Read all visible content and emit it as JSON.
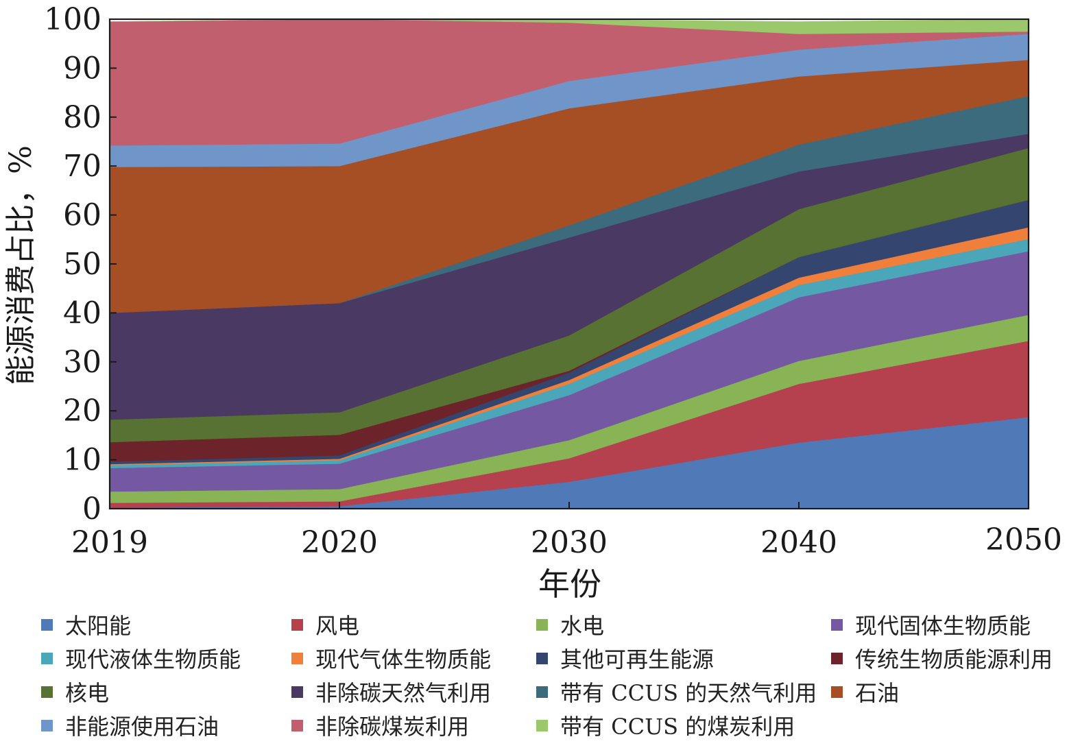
{
  "chart_data": {
    "type": "area",
    "stacked": true,
    "x": [
      "2019",
      "2020",
      "2030",
      "2040",
      "2050"
    ],
    "xlabel": "年份",
    "ylabel": "能源消费占比，%",
    "ylim": [
      0,
      100
    ],
    "yticks": [
      0,
      10,
      20,
      30,
      40,
      50,
      60,
      70,
      80,
      90,
      100
    ],
    "grid": false,
    "legend_position": "bottom",
    "series": [
      {
        "name": "太阳能",
        "color": "#4f79b7",
        "values": [
          0.2,
          0.5,
          5.5,
          13.5,
          18.7
        ]
      },
      {
        "name": "风电",
        "color": "#b5414f",
        "values": [
          1.0,
          1.0,
          4.8,
          12.0,
          15.6
        ]
      },
      {
        "name": "水电",
        "color": "#88b456",
        "values": [
          2.3,
          2.5,
          3.7,
          4.7,
          5.3
        ]
      },
      {
        "name": "现代固体生物质能",
        "color": "#7459a2",
        "values": [
          4.8,
          5.2,
          9.2,
          13.0,
          13.0
        ]
      },
      {
        "name": "现代液体生物质能",
        "color": "#4aa6b8",
        "values": [
          0.6,
          0.7,
          2.3,
          2.5,
          2.5
        ]
      },
      {
        "name": "现代气体生物质能",
        "color": "#ef7f3a",
        "values": [
          0.2,
          0.3,
          0.8,
          1.5,
          2.4
        ]
      },
      {
        "name": "其他可再生能源",
        "color": "#34456f",
        "values": [
          0.5,
          0.7,
          1.5,
          4.2,
          5.6
        ]
      },
      {
        "name": "传统生物质能源利用",
        "color": "#6c242a",
        "values": [
          4.0,
          4.2,
          0.4,
          0.0,
          0.0
        ]
      },
      {
        "name": "核电",
        "color": "#577232",
        "values": [
          4.6,
          4.6,
          7.2,
          9.8,
          10.6
        ]
      },
      {
        "name": "非除碳天然气利用",
        "color": "#4a3962",
        "values": [
          21.8,
          22.3,
          20.0,
          7.7,
          2.9
        ]
      },
      {
        "name": "带有 CCUS 的天然气利用",
        "color": "#3c6b7d",
        "values": [
          0.0,
          0.0,
          2.5,
          5.5,
          7.7
        ]
      },
      {
        "name": "石油",
        "color": "#a64e24",
        "values": [
          29.8,
          28.0,
          23.9,
          13.9,
          7.4
        ]
      },
      {
        "name": "非能源使用石油",
        "color": "#6f95c9",
        "values": [
          4.4,
          4.6,
          5.6,
          5.5,
          5.3
        ]
      },
      {
        "name": "非除碳煤炭利用",
        "color": "#c25f6e",
        "values": [
          25.3,
          25.4,
          11.9,
          3.2,
          0.5
        ]
      },
      {
        "name": "带有 CCUS 的煤炭利用",
        "color": "#9bc86b",
        "values": [
          0.0,
          0.0,
          0.6,
          2.5,
          2.5
        ]
      }
    ]
  }
}
